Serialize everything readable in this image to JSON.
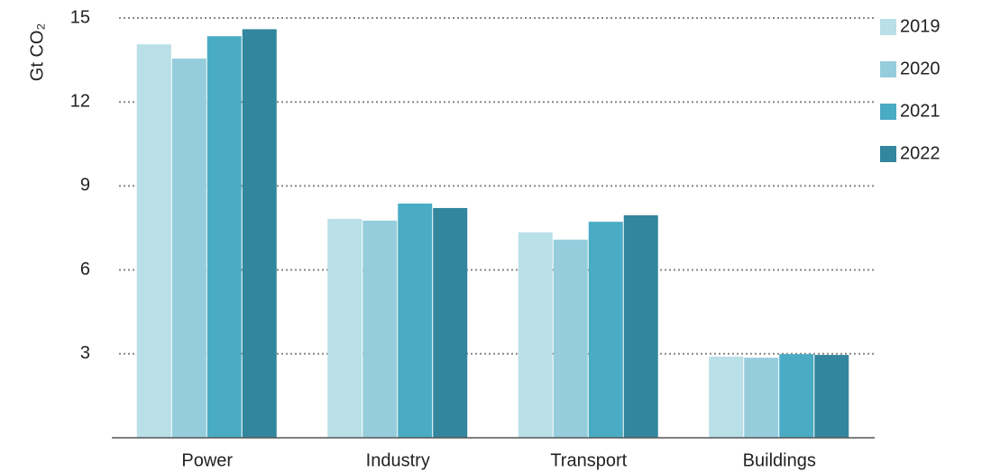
{
  "chart_data": {
    "type": "bar",
    "y_label": "Gt CO₂",
    "categories": [
      "Power",
      "Industry",
      "Transport",
      "Buildings"
    ],
    "series": [
      {
        "name": "2019",
        "color": "#b9dfe7",
        "values": [
          14.06,
          7.82,
          7.34,
          2.9
        ]
      },
      {
        "name": "2020",
        "color": "#95cddc",
        "values": [
          13.55,
          7.76,
          7.08,
          2.86
        ]
      },
      {
        "name": "2021",
        "color": "#4aabc4",
        "values": [
          14.35,
          8.37,
          7.72,
          2.99
        ]
      },
      {
        "name": "2022",
        "color": "#32869d",
        "values": [
          14.6,
          8.21,
          7.95,
          2.96
        ]
      }
    ],
    "ylim": [
      0,
      15
    ],
    "yticks": [
      3,
      6,
      9,
      12,
      15
    ],
    "grid": true
  }
}
